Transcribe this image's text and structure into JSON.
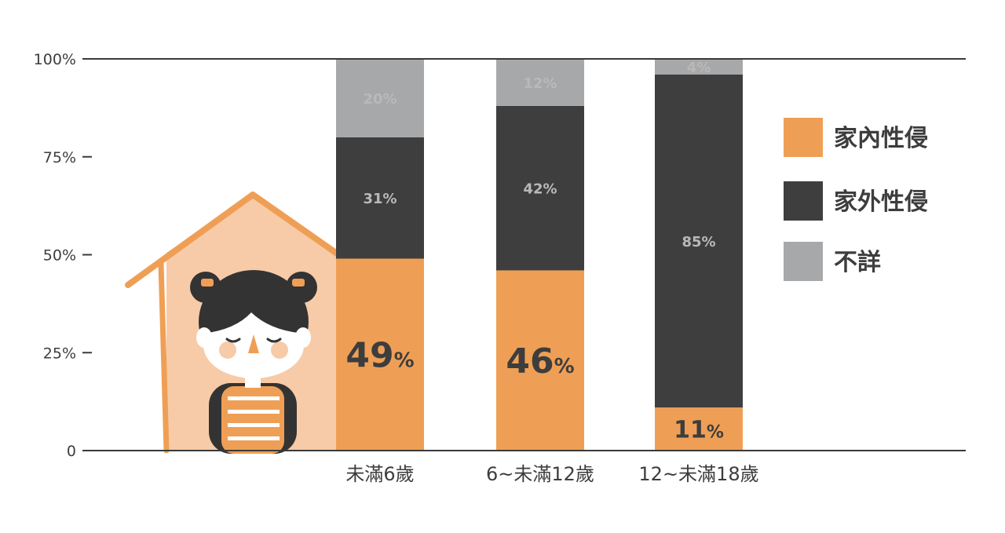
{
  "chart_data": {
    "type": "bar",
    "stacked": true,
    "categories": [
      "未滿6歲",
      "6~未滿12歲",
      "12~未滿18歲"
    ],
    "series": [
      {
        "name": "家內性侵",
        "values": [
          49,
          46,
          11
        ],
        "color": "#ef9f55"
      },
      {
        "name": "家外性侵",
        "values": [
          31,
          42,
          85
        ],
        "color": "#3e3e3e"
      },
      {
        "name": "不詳",
        "values": [
          20,
          12,
          4
        ],
        "color": "#a7a8aa"
      }
    ],
    "ylim": [
      0,
      100
    ],
    "yticks": [
      {
        "value": 0,
        "label": "0"
      },
      {
        "value": 25,
        "label": "25%"
      },
      {
        "value": 50,
        "label": "50%"
      },
      {
        "value": 75,
        "label": "75%"
      },
      {
        "value": 100,
        "label": "100%"
      }
    ],
    "value_labels": [
      [
        "49%",
        "31%",
        "20%"
      ],
      [
        "46%",
        "42%",
        "12%"
      ],
      [
        "11%",
        "85%",
        "4%"
      ]
    ],
    "legend_position": "right",
    "grid": false
  },
  "illustration": {
    "subject": "girl-in-house",
    "colors": {
      "house_fill": "#f7cba7",
      "house_outline": "#ef9f55",
      "hair": "#333333",
      "accent": "#ef9f55"
    }
  }
}
